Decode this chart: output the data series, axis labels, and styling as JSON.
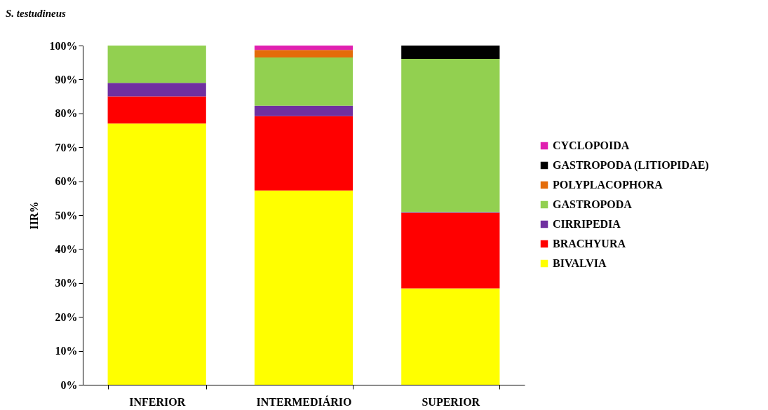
{
  "chart_data": {
    "type": "bar",
    "title": "S. testudineus",
    "ylabel": "IIR%",
    "stacked": true,
    "legend": "right",
    "grid": false,
    "categories": [
      "INFERIOR",
      "INTERMEDIÁRIO",
      "SUPERIOR"
    ],
    "ylim": [
      0,
      100
    ],
    "yticks": [
      {
        "value": 0,
        "label": "0%"
      },
      {
        "value": 10,
        "label": "10%"
      },
      {
        "value": 20,
        "label": "20%"
      },
      {
        "value": 30,
        "label": "30%"
      },
      {
        "value": 40,
        "label": "40%"
      },
      {
        "value": 50,
        "label": "50%"
      },
      {
        "value": 60,
        "label": "60%"
      },
      {
        "value": 70,
        "label": "70%"
      },
      {
        "value": 80,
        "label": "80%"
      },
      {
        "value": 90,
        "label": "90%"
      },
      {
        "value": 100,
        "label": "100%"
      }
    ],
    "series": [
      {
        "name": "BIVALVIA",
        "color": "#ffff00",
        "values": [
          77,
          57.3,
          28.4
        ]
      },
      {
        "name": "BRACHYURA",
        "color": "#ff0000",
        "values": [
          8,
          21.9,
          22.3
        ]
      },
      {
        "name": "CIRRIPEDIA",
        "color": "#7030a0",
        "values": [
          4,
          3.1,
          0.2
        ]
      },
      {
        "name": "GASTROPODA",
        "color": "#92d050",
        "values": [
          11,
          14.2,
          45.2
        ]
      },
      {
        "name": "POLYPLACOPHORA",
        "color": "#e46c0a",
        "values": [
          null,
          2.2,
          null
        ]
      },
      {
        "name": "GASTROPODA (LITIOPIDAE)",
        "color": "#000000",
        "values": [
          null,
          null,
          3.9
        ]
      },
      {
        "name": "CYCLOPOIDA",
        "color": "#e020b0",
        "values": [
          null,
          1.3,
          null
        ]
      }
    ]
  }
}
